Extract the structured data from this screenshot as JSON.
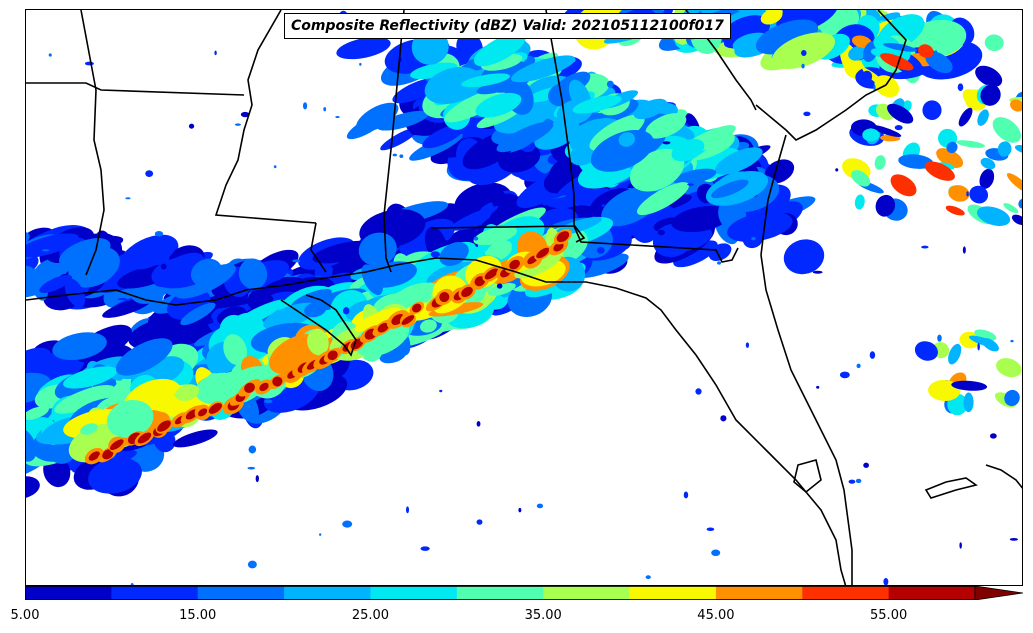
{
  "title": "Composite Reflectivity (dBZ) Valid: 202105112100f017",
  "colorbar": {
    "levels": [
      5,
      10,
      15,
      20,
      25,
      30,
      35,
      40,
      45,
      50,
      55
    ],
    "colors": [
      "#0000c8",
      "#0028ff",
      "#0070ff",
      "#00b4ff",
      "#00e8f0",
      "#50ffb0",
      "#a8ff50",
      "#f8f800",
      "#ff9000",
      "#ff3000",
      "#b40000"
    ],
    "overflow_color": "#800000",
    "extend": "max",
    "tick_labels": [
      "5.00",
      "15.00",
      "25.00",
      "35.00",
      "45.00",
      "55.00"
    ]
  }
}
